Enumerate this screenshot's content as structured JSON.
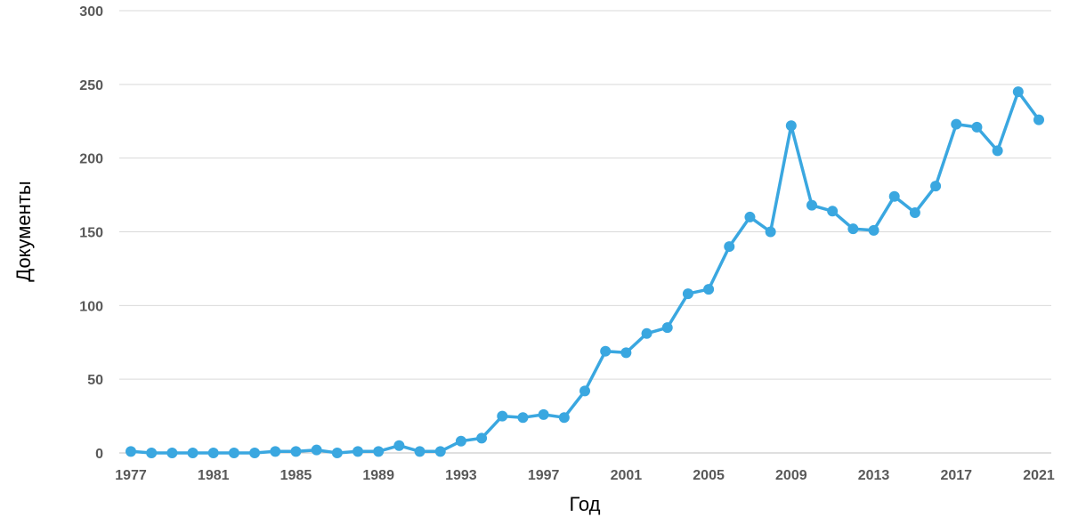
{
  "chart_data": {
    "type": "line",
    "title": "",
    "xlabel": "Год",
    "ylabel": "Документы",
    "ylim": [
      0,
      300
    ],
    "yticks": [
      0,
      50,
      100,
      150,
      200,
      250,
      300
    ],
    "xticks": [
      "1977",
      "1981",
      "1985",
      "1989",
      "1993",
      "1997",
      "2001",
      "2005",
      "2009",
      "2013",
      "2017",
      "2021"
    ],
    "grid": true,
    "legend": "none",
    "color": "#3aa7e0",
    "series": [
      {
        "x": [
          1977,
          1978,
          1979,
          1980,
          1981,
          1982,
          1983,
          1984,
          1985,
          1986,
          1987,
          1988,
          1989,
          1990,
          1991,
          1992,
          1993,
          1994,
          1995,
          1996,
          1997,
          1998,
          1999,
          2000,
          2001,
          2002,
          2003,
          2004,
          2005,
          2006,
          2007,
          2008,
          2009,
          2010,
          2011,
          2012,
          2013,
          2014,
          2015,
          2016,
          2017,
          2018,
          2019,
          2020,
          2021
        ],
        "values": [
          1,
          0,
          0,
          0,
          0,
          0,
          0,
          1,
          1,
          2,
          0,
          1,
          1,
          5,
          1,
          1,
          8,
          10,
          25,
          24,
          26,
          24,
          42,
          69,
          68,
          81,
          85,
          108,
          111,
          140,
          160,
          150,
          222,
          168,
          164,
          152,
          151,
          174,
          163,
          181,
          223,
          221,
          205,
          245,
          226
        ]
      }
    ]
  }
}
